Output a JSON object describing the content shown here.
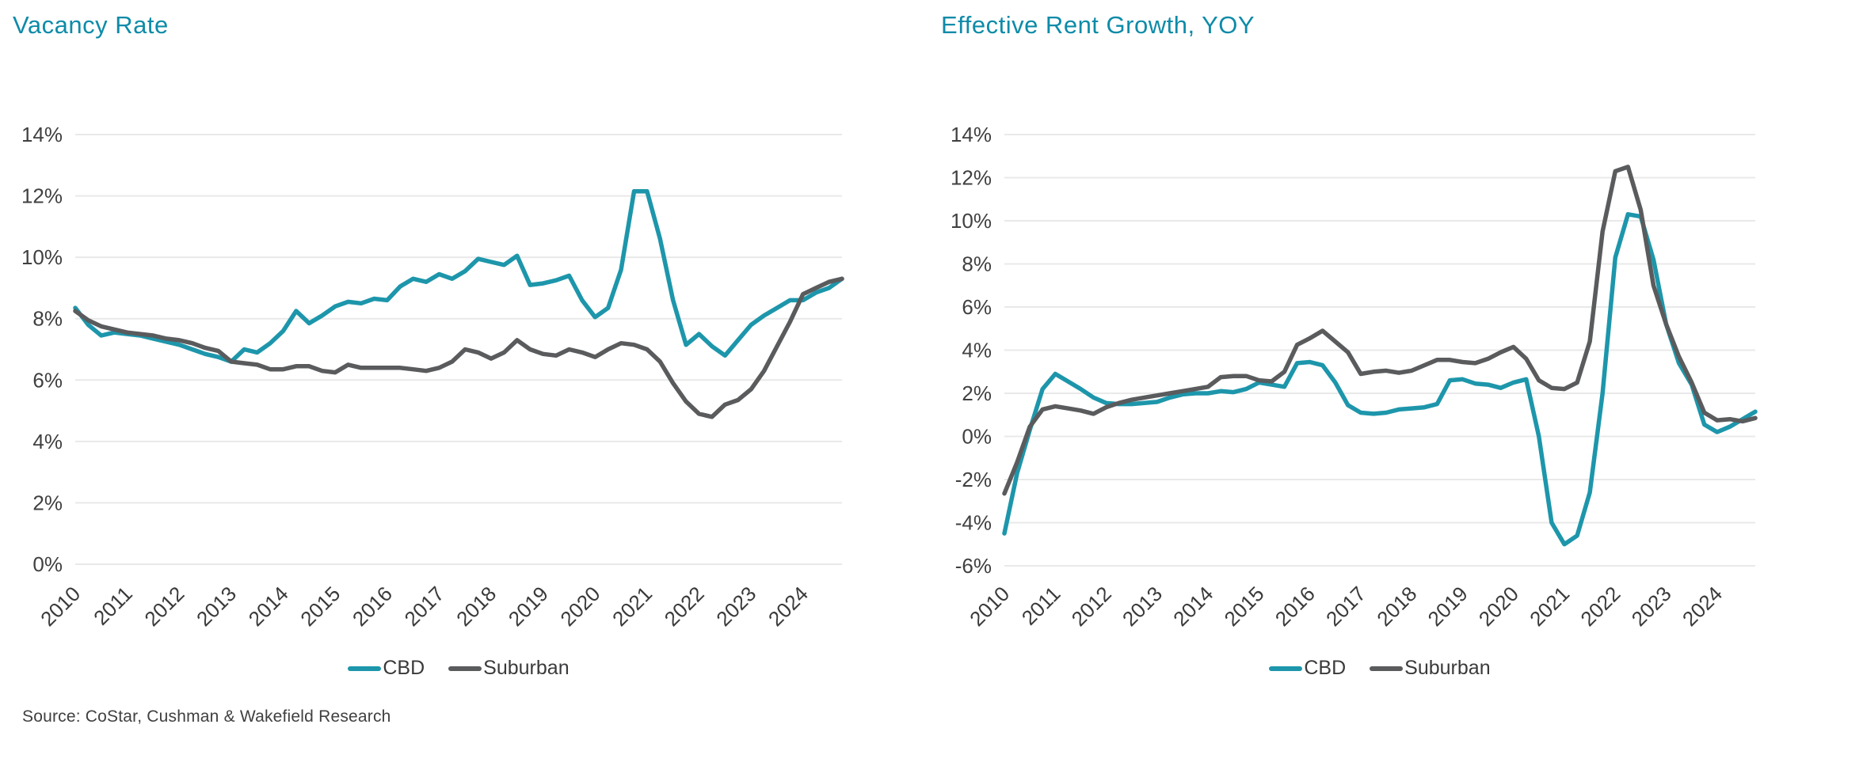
{
  "page": {
    "background": "#ffffff",
    "accent_teal": "#0d8ba8"
  },
  "source_note": "Source: CoStar, Cushman & Wakefield Research",
  "charts": [
    {
      "id": "vacancy",
      "title": "Vacancy Rate",
      "legend": [
        {
          "label": "CBD",
          "color": "#1d96ab"
        },
        {
          "label": "Suburban",
          "color": "#5a5b5d"
        }
      ],
      "chart_data": {
        "type": "line",
        "title": "Vacancy Rate",
        "x_tick_labels": [
          "2010",
          "2011",
          "2012",
          "2013",
          "2014",
          "2015",
          "2016",
          "2017",
          "2018",
          "2019",
          "2020",
          "2021",
          "2022",
          "2023",
          "2024"
        ],
        "points_per_year": 4,
        "y_ticks": [
          "14%",
          "12%",
          "10%",
          "8%",
          "6%",
          "4%",
          "2%",
          "0%"
        ],
        "ylim": [
          0,
          14
        ],
        "grid": true,
        "legend_position": "bottom",
        "series": [
          {
            "name": "CBD",
            "color": "#1d96ab",
            "values": [
              8.35,
              7.8,
              7.45,
              7.55,
              7.5,
              7.45,
              7.35,
              7.25,
              7.15,
              7.0,
              6.85,
              6.75,
              6.6,
              7.0,
              6.9,
              7.2,
              7.6,
              8.25,
              7.85,
              8.1,
              8.4,
              8.55,
              8.5,
              8.65,
              8.6,
              9.05,
              9.3,
              9.2,
              9.45,
              9.3,
              9.55,
              9.95,
              9.85,
              9.75,
              10.05,
              9.1,
              9.15,
              9.25,
              9.4,
              8.6,
              8.05,
              8.35,
              9.6,
              12.15,
              12.15,
              10.6,
              8.6,
              7.15,
              7.5,
              7.1,
              6.8,
              7.3,
              7.8,
              8.1,
              8.35,
              8.6,
              8.6,
              8.85,
              9.0,
              9.3
            ]
          },
          {
            "name": "Suburban",
            "color": "#5a5b5d",
            "values": [
              8.25,
              7.95,
              7.75,
              7.65,
              7.55,
              7.5,
              7.45,
              7.35,
              7.3,
              7.2,
              7.05,
              6.95,
              6.6,
              6.55,
              6.5,
              6.35,
              6.35,
              6.45,
              6.45,
              6.3,
              6.25,
              6.5,
              6.4,
              6.4,
              6.4,
              6.4,
              6.35,
              6.3,
              6.4,
              6.6,
              7.0,
              6.9,
              6.7,
              6.9,
              7.3,
              7.0,
              6.85,
              6.8,
              7.0,
              6.9,
              6.75,
              7.0,
              7.2,
              7.15,
              7.0,
              6.6,
              5.9,
              5.3,
              4.9,
              4.8,
              5.2,
              5.35,
              5.7,
              6.3,
              7.1,
              7.9,
              8.8,
              9.0,
              9.2,
              9.3
            ]
          }
        ]
      }
    },
    {
      "id": "rent",
      "title": "Effective Rent Growth, YOY",
      "legend": [
        {
          "label": "CBD",
          "color": "#1d96ab"
        },
        {
          "label": "Suburban",
          "color": "#5a5b5d"
        }
      ],
      "chart_data": {
        "type": "line",
        "title": "Effective Rent Growth, YOY",
        "x_tick_labels": [
          "2010",
          "2011",
          "2012",
          "2013",
          "2014",
          "2015",
          "2016",
          "2017",
          "2018",
          "2019",
          "2020",
          "2021",
          "2022",
          "2023",
          "2024"
        ],
        "points_per_year": 4,
        "y_ticks": [
          "14%",
          "12%",
          "10%",
          "8%",
          "6%",
          "4%",
          "2%",
          "0%",
          "-2%",
          "-4%",
          "-6%"
        ],
        "ylim": [
          -6,
          14
        ],
        "grid": true,
        "legend_position": "bottom",
        "series": [
          {
            "name": "CBD",
            "color": "#1d96ab",
            "values": [
              -4.5,
              -1.7,
              0.3,
              2.2,
              2.9,
              2.55,
              2.2,
              1.8,
              1.55,
              1.5,
              1.5,
              1.55,
              1.6,
              1.8,
              1.95,
              2.0,
              2.0,
              2.1,
              2.05,
              2.2,
              2.5,
              2.4,
              2.3,
              3.4,
              3.45,
              3.3,
              2.5,
              1.45,
              1.1,
              1.05,
              1.1,
              1.25,
              1.3,
              1.35,
              1.5,
              2.6,
              2.65,
              2.45,
              2.4,
              2.25,
              2.5,
              2.65,
              0.0,
              -4.0,
              -5.0,
              -4.6,
              -2.6,
              2.0,
              8.3,
              10.3,
              10.2,
              8.2,
              5.2,
              3.4,
              2.4,
              0.55,
              0.2,
              0.45,
              0.8,
              1.15
            ]
          },
          {
            "name": "Suburban",
            "color": "#5a5b5d",
            "values": [
              -2.65,
              -1.2,
              0.45,
              1.25,
              1.4,
              1.3,
              1.2,
              1.05,
              1.35,
              1.55,
              1.7,
              1.8,
              1.9,
              2.0,
              2.1,
              2.2,
              2.3,
              2.75,
              2.8,
              2.8,
              2.6,
              2.55,
              3.0,
              4.25,
              4.55,
              4.9,
              4.4,
              3.9,
              2.9,
              3.0,
              3.05,
              2.95,
              3.05,
              3.3,
              3.55,
              3.55,
              3.45,
              3.4,
              3.6,
              3.9,
              4.15,
              3.6,
              2.6,
              2.25,
              2.2,
              2.5,
              4.4,
              9.5,
              12.3,
              12.5,
              10.5,
              7.0,
              5.2,
              3.7,
              2.5,
              1.1,
              0.75,
              0.8,
              0.7,
              0.85
            ]
          }
        ]
      }
    }
  ]
}
